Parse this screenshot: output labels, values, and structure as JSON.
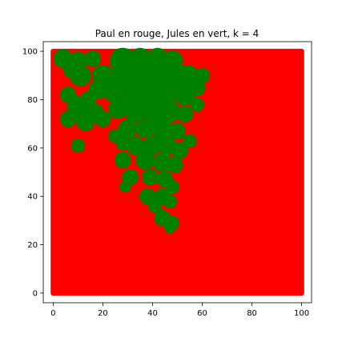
{
  "chart_data": {
    "type": "scatter",
    "title": "Paul en rouge, Jules en vert, k = 4",
    "xlabel": "",
    "ylabel": "",
    "xlim": [
      -4,
      104
    ],
    "ylim": [
      -4,
      104
    ],
    "xticks": [
      0,
      20,
      40,
      60,
      80,
      100
    ],
    "yticks": [
      0,
      20,
      40,
      60,
      80,
      100
    ],
    "grid": false,
    "legend": "none",
    "series": [
      {
        "color": "#ff0000",
        "values": "fills the full 0-100 x 0-100 grid"
      },
      {
        "color": "#008000",
        "blobs": [
          {
            "cx": 4,
            "cy": 97,
            "r": 3.5
          },
          {
            "cx": 10,
            "cy": 96,
            "r": 3.5
          },
          {
            "cx": 16,
            "cy": 97,
            "r": 3
          },
          {
            "cx": 11,
            "cy": 90,
            "r": 4
          },
          {
            "cx": 7,
            "cy": 92,
            "r": 2.5
          },
          {
            "cx": 20,
            "cy": 90,
            "r": 4
          },
          {
            "cx": 18,
            "cy": 84,
            "r": 3.5
          },
          {
            "cx": 6,
            "cy": 82,
            "r": 3
          },
          {
            "cx": 10,
            "cy": 77,
            "r": 4
          },
          {
            "cx": 6,
            "cy": 72,
            "r": 3
          },
          {
            "cx": 13,
            "cy": 71,
            "r": 3.5
          },
          {
            "cx": 17,
            "cy": 75,
            "r": 3
          },
          {
            "cx": 14,
            "cy": 80,
            "r": 3
          },
          {
            "cx": 10,
            "cy": 61,
            "r": 2.5
          },
          {
            "cx": 20,
            "cy": 72,
            "r": 3
          },
          {
            "cx": 28,
            "cy": 96,
            "r": 5
          },
          {
            "cx": 35,
            "cy": 97,
            "r": 4
          },
          {
            "cx": 42,
            "cy": 97,
            "r": 4
          },
          {
            "cx": 48,
            "cy": 96,
            "r": 4
          },
          {
            "cx": 27,
            "cy": 89,
            "r": 4
          },
          {
            "cx": 33,
            "cy": 90,
            "r": 5
          },
          {
            "cx": 40,
            "cy": 90,
            "r": 5
          },
          {
            "cx": 47,
            "cy": 89,
            "r": 5
          },
          {
            "cx": 54,
            "cy": 90,
            "r": 4
          },
          {
            "cx": 60,
            "cy": 90,
            "r": 2.8
          },
          {
            "cx": 58,
            "cy": 85,
            "r": 3
          },
          {
            "cx": 53,
            "cy": 82,
            "r": 4
          },
          {
            "cx": 24,
            "cy": 83,
            "r": 3.5
          },
          {
            "cx": 31,
            "cy": 82,
            "r": 4.5
          },
          {
            "cx": 38,
            "cy": 82,
            "r": 4.5
          },
          {
            "cx": 45,
            "cy": 82,
            "r": 4.5
          },
          {
            "cx": 58,
            "cy": 78,
            "r": 2.5
          },
          {
            "cx": 26,
            "cy": 76,
            "r": 3.5
          },
          {
            "cx": 33,
            "cy": 75,
            "r": 4
          },
          {
            "cx": 40,
            "cy": 75,
            "r": 4
          },
          {
            "cx": 47,
            "cy": 75,
            "r": 4
          },
          {
            "cx": 53,
            "cy": 74,
            "r": 3
          },
          {
            "cx": 30,
            "cy": 68,
            "r": 3.5
          },
          {
            "cx": 37,
            "cy": 68,
            "r": 3.5
          },
          {
            "cx": 44,
            "cy": 68,
            "r": 4
          },
          {
            "cx": 50,
            "cy": 67,
            "r": 3
          },
          {
            "cx": 25,
            "cy": 65,
            "r": 2.5
          },
          {
            "cx": 28,
            "cy": 62,
            "r": 2.5
          },
          {
            "cx": 33,
            "cy": 61,
            "r": 3.5
          },
          {
            "cx": 40,
            "cy": 61,
            "r": 3.5
          },
          {
            "cx": 46,
            "cy": 61,
            "r": 3.5
          },
          {
            "cx": 51,
            "cy": 59,
            "r": 3
          },
          {
            "cx": 55,
            "cy": 63,
            "r": 2.5
          },
          {
            "cx": 28,
            "cy": 55,
            "r": 3
          },
          {
            "cx": 31,
            "cy": 48,
            "r": 3
          },
          {
            "cx": 29,
            "cy": 44,
            "r": 2
          },
          {
            "cx": 37,
            "cy": 55,
            "r": 3.5
          },
          {
            "cx": 44,
            "cy": 54,
            "r": 3.5
          },
          {
            "cx": 49,
            "cy": 53,
            "r": 3
          },
          {
            "cx": 39,
            "cy": 48,
            "r": 3
          },
          {
            "cx": 45,
            "cy": 47,
            "r": 3
          },
          {
            "cx": 48,
            "cy": 44,
            "r": 2.5
          },
          {
            "cx": 38,
            "cy": 40,
            "r": 3
          },
          {
            "cx": 44,
            "cy": 40,
            "r": 3
          },
          {
            "cx": 41,
            "cy": 36,
            "r": 2.5
          },
          {
            "cx": 47,
            "cy": 38,
            "r": 2.5
          },
          {
            "cx": 44,
            "cy": 31,
            "r": 3
          },
          {
            "cx": 48,
            "cy": 29,
            "r": 2.5
          },
          {
            "cx": 47,
            "cy": 27,
            "r": 2
          }
        ]
      }
    ]
  }
}
